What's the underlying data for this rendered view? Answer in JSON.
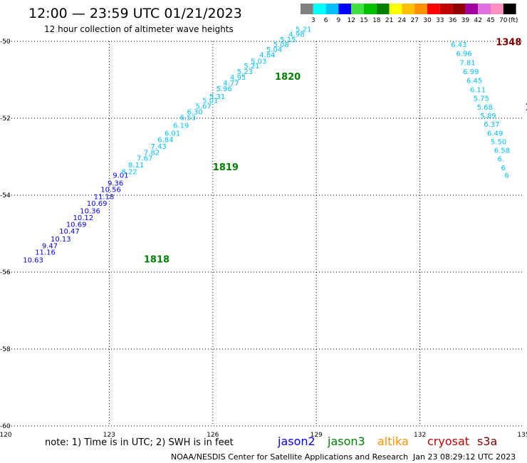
{
  "header": {
    "title": "12:00 — 23:59 UTC 01/21/2023",
    "subtitle": "12 hour collection of altimeter wave heights"
  },
  "colorbar": {
    "colors": [
      "#808080",
      "#00ffff",
      "#00bfff",
      "#0000ff",
      "#40e040",
      "#00c000",
      "#008000",
      "#ffff00",
      "#ffc000",
      "#ff9000",
      "#ff0000",
      "#c00000",
      "#900000",
      "#a000a0",
      "#e070e0",
      "#ff90c0",
      "#000000"
    ],
    "labels": [
      "3",
      "6",
      "9",
      "12",
      "15",
      "18",
      "21",
      "24",
      "27",
      "30",
      "33",
      "36",
      "39",
      "42",
      "45",
      "70"
    ],
    "unit": "(ft)"
  },
  "chart_data": {
    "type": "scatter",
    "xlim": [
      120,
      135
    ],
    "ylim": [
      -60,
      -50
    ],
    "x_ticks": [
      "120",
      "123",
      "126",
      "129",
      "132",
      "135"
    ],
    "y_ticks": [
      "-50",
      "-52",
      "-54",
      "-56",
      "-58",
      "-60"
    ],
    "grid": true,
    "passes": [
      {
        "label": "1818",
        "color": "#008000",
        "x": 124.0,
        "y": -55.75
      },
      {
        "label": "1819",
        "color": "#008000",
        "x": 126.0,
        "y": -53.35
      },
      {
        "label": "1820",
        "color": "#008000",
        "x": 127.8,
        "y": -51.0
      },
      {
        "label": "1348",
        "color": "#800000",
        "x": 134.2,
        "y": -50.1
      },
      {
        "label": "1",
        "color": "#800000",
        "x": 135.05,
        "y": -51.8
      }
    ],
    "points": [
      {
        "v": "10.63",
        "x": 120.5,
        "y": -55.75,
        "c": "#0000ff"
      },
      {
        "v": "11.16",
        "x": 120.85,
        "y": -55.55,
        "c": "#0000ff"
      },
      {
        "v": "9.47",
        "x": 121.05,
        "y": -55.38,
        "c": "#0000ff"
      },
      {
        "v": "10.13",
        "x": 121.3,
        "y": -55.2,
        "c": "#0000ff"
      },
      {
        "v": "10.47",
        "x": 121.55,
        "y": -55.0,
        "c": "#0000ff"
      },
      {
        "v": "10.69",
        "x": 121.75,
        "y": -54.82,
        "c": "#0000ff"
      },
      {
        "v": "10.12",
        "x": 121.95,
        "y": -54.65,
        "c": "#0000ff"
      },
      {
        "v": "10.36",
        "x": 122.15,
        "y": -54.47,
        "c": "#0000ff"
      },
      {
        "v": "10.69",
        "x": 122.35,
        "y": -54.28,
        "c": "#0000ff"
      },
      {
        "v": "11.18",
        "x": 122.55,
        "y": -54.1,
        "c": "#0000ff"
      },
      {
        "v": "10.56",
        "x": 122.75,
        "y": -53.92,
        "c": "#0000ff"
      },
      {
        "v": "9.36",
        "x": 122.95,
        "y": -53.75,
        "c": "#0000ff"
      },
      {
        "v": "9.01",
        "x": 123.1,
        "y": -53.55,
        "c": "#0000ff"
      },
      {
        "v": "8.22",
        "x": 123.35,
        "y": -53.45,
        "c": "#00bfff"
      },
      {
        "v": "8.11",
        "x": 123.55,
        "y": -53.28,
        "c": "#00bfff"
      },
      {
        "v": "7.67",
        "x": 123.8,
        "y": -53.1,
        "c": "#00bfff"
      },
      {
        "v": "7.82",
        "x": 124.0,
        "y": -52.95,
        "c": "#00bfff"
      },
      {
        "v": "7.43",
        "x": 124.2,
        "y": -52.8,
        "c": "#00bfff"
      },
      {
        "v": "6.84",
        "x": 124.4,
        "y": -52.62,
        "c": "#00bfff"
      },
      {
        "v": "6.01",
        "x": 124.6,
        "y": -52.45,
        "c": "#00bfff"
      },
      {
        "v": "6.19",
        "x": 124.85,
        "y": -52.25,
        "c": "#00bfff"
      },
      {
        "v": "6.53",
        "x": 125.05,
        "y": -52.05,
        "c": "#00bfff"
      },
      {
        "v": "6.30",
        "x": 125.25,
        "y": -51.9,
        "c": "#00bfff"
      },
      {
        "v": "5.67",
        "x": 125.5,
        "y": -51.75,
        "c": "#00bfff"
      },
      {
        "v": "5.01",
        "x": 125.7,
        "y": -51.6,
        "c": "#00bfff"
      },
      {
        "v": "5.31",
        "x": 125.9,
        "y": -51.5,
        "c": "#00bfff"
      },
      {
        "v": "5.96",
        "x": 126.1,
        "y": -51.3,
        "c": "#00bfff"
      },
      {
        "v": "4.77",
        "x": 126.3,
        "y": -51.15,
        "c": "#00bfff"
      },
      {
        "v": "4.95",
        "x": 126.5,
        "y": -51.0,
        "c": "#00bfff"
      },
      {
        "v": "5.23",
        "x": 126.7,
        "y": -50.85,
        "c": "#00bfff"
      },
      {
        "v": "5.21",
        "x": 126.9,
        "y": -50.7,
        "c": "#00bfff"
      },
      {
        "v": "5.03",
        "x": 127.1,
        "y": -50.58,
        "c": "#00bfff"
      },
      {
        "v": "4.84",
        "x": 127.35,
        "y": -50.42,
        "c": "#00bfff"
      },
      {
        "v": "5.04",
        "x": 127.55,
        "y": -50.28,
        "c": "#00bfff"
      },
      {
        "v": "5.08",
        "x": 127.75,
        "y": -50.15,
        "c": "#00bfff"
      },
      {
        "v": "5.15",
        "x": 127.95,
        "y": -50.02,
        "c": "#00bfff"
      },
      {
        "v": "4.98",
        "x": 128.2,
        "y": -49.88,
        "c": "#00bfff"
      },
      {
        "v": "5.21",
        "x": 128.4,
        "y": -49.75,
        "c": "#00bfff"
      },
      {
        "v": "6.43",
        "x": 132.9,
        "y": -50.15,
        "c": "#00bfff"
      },
      {
        "v": "6.96",
        "x": 133.05,
        "y": -50.38,
        "c": "#00bfff"
      },
      {
        "v": "7.81",
        "x": 133.15,
        "y": -50.62,
        "c": "#00bfff"
      },
      {
        "v": "6.99",
        "x": 133.25,
        "y": -50.85,
        "c": "#00bfff"
      },
      {
        "v": "6.45",
        "x": 133.35,
        "y": -51.08,
        "c": "#00bfff"
      },
      {
        "v": "6.11",
        "x": 133.45,
        "y": -51.32,
        "c": "#00bfff"
      },
      {
        "v": "5.75",
        "x": 133.55,
        "y": -51.55,
        "c": "#00bfff"
      },
      {
        "v": "5.68",
        "x": 133.65,
        "y": -51.78,
        "c": "#00bfff"
      },
      {
        "v": "5.89",
        "x": 133.75,
        "y": -52.0,
        "c": "#00bfff"
      },
      {
        "v": "6.37",
        "x": 133.85,
        "y": -52.22,
        "c": "#00bfff"
      },
      {
        "v": "6.49",
        "x": 133.95,
        "y": -52.45,
        "c": "#00bfff"
      },
      {
        "v": "5.50",
        "x": 134.05,
        "y": -52.68,
        "c": "#00bfff"
      },
      {
        "v": "6.58",
        "x": 134.15,
        "y": -52.9,
        "c": "#00bfff"
      },
      {
        "v": "6.",
        "x": 134.25,
        "y": -53.12,
        "c": "#00bfff"
      },
      {
        "v": "6",
        "x": 134.35,
        "y": -53.35,
        "c": "#00bfff"
      },
      {
        "v": "6",
        "x": 134.45,
        "y": -53.55,
        "c": "#00bfff"
      }
    ]
  },
  "footer": {
    "note": "note: 1) Time is in UTC; 2) SWH is in feet",
    "satellites": [
      {
        "name": "jason2",
        "color": "#0000ff"
      },
      {
        "name": "jason3",
        "color": "#008000"
      },
      {
        "name": "altika",
        "color": "#ff9000"
      },
      {
        "name": "cryosat",
        "color": "#c00000"
      },
      {
        "name": "s3a",
        "color": "#800000"
      }
    ],
    "credit": "NOAA/NESDIS Center for Satellite Applications and Research",
    "timestamp": "Jan 23 08:29:12 UTC 2023"
  }
}
